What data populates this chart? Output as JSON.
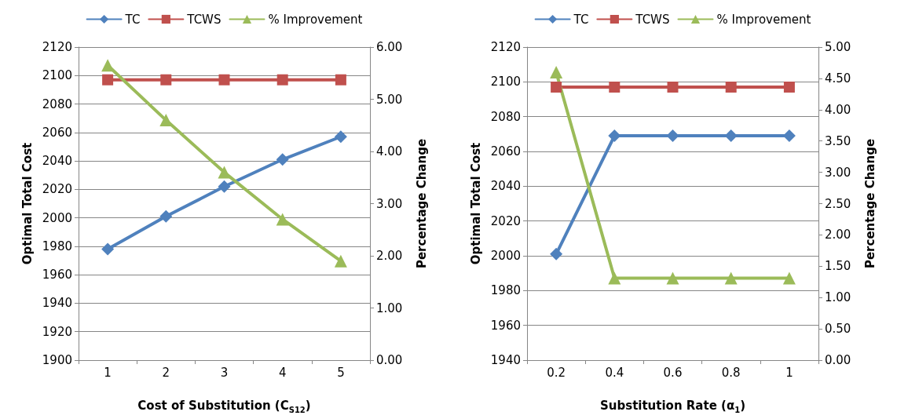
{
  "chart_data": [
    {
      "type": "line",
      "xlabel": "Cost of Substitution (C$_{S12}$)",
      "ylabel": "Optimal Total Cost",
      "y2label": "Percentage Change",
      "categories": [
        "1",
        "2",
        "3",
        "4",
        "5"
      ],
      "series": [
        {
          "name": "TC",
          "color": "#4f81bd",
          "marker": "diamond",
          "values": [
            1978,
            2001,
            2022,
            2041,
            2057
          ]
        },
        {
          "name": "TCWS",
          "color": "#c0504d",
          "marker": "square",
          "values": [
            2097,
            2097,
            2097,
            2097,
            2097
          ]
        },
        {
          "name": "% Improvement",
          "color": "#9bbb59",
          "marker": "triangle",
          "axis": "y2",
          "values": [
            5.65,
            4.6,
            3.6,
            2.7,
            1.9
          ]
        }
      ],
      "ylim": [
        1900,
        2120
      ],
      "yticks": [
        1900,
        1920,
        1940,
        1960,
        1980,
        2000,
        2020,
        2040,
        2060,
        2080,
        2100,
        2120
      ],
      "y2lim": [
        0,
        6
      ],
      "y2ticks": [
        {
          "value": 0,
          "label": "0.00"
        },
        {
          "value": 1,
          "label": "1.00"
        },
        {
          "value": 2,
          "label": "2.00"
        },
        {
          "value": 3,
          "label": "3.00"
        },
        {
          "value": 4,
          "label": "4.00"
        },
        {
          "value": 5,
          "label": "5.00"
        },
        {
          "value": 6,
          "label": "6.00"
        }
      ],
      "grid": "y",
      "legend": "top"
    },
    {
      "type": "line",
      "xlabel": "Substitution Rate (α$_{1}$)",
      "ylabel": "Optimal Total Cost",
      "y2label": "Percentage Change",
      "categories": [
        "0.2",
        "0.4",
        "0.6",
        "0.8",
        "1"
      ],
      "series": [
        {
          "name": "TC",
          "color": "#4f81bd",
          "marker": "diamond",
          "values": [
            2001,
            2069,
            2069,
            2069,
            2069
          ]
        },
        {
          "name": "TCWS",
          "color": "#c0504d",
          "marker": "square",
          "values": [
            2097,
            2097,
            2097,
            2097,
            2097
          ]
        },
        {
          "name": "% Improvement",
          "color": "#9bbb59",
          "marker": "triangle",
          "axis": "y2",
          "values": [
            4.6,
            1.31,
            1.31,
            1.31,
            1.31
          ]
        }
      ],
      "ylim": [
        1940,
        2120
      ],
      "yticks": [
        1940,
        1960,
        1980,
        2000,
        2020,
        2040,
        2060,
        2080,
        2100,
        2120
      ],
      "y2lim": [
        0,
        5
      ],
      "y2ticks": [
        {
          "value": 0,
          "label": "0.00"
        },
        {
          "value": 0.5,
          "label": "0.50"
        },
        {
          "value": 1,
          "label": "1.00"
        },
        {
          "value": 1.5,
          "label": "1.50"
        },
        {
          "value": 2,
          "label": "2.00"
        },
        {
          "value": 2.5,
          "label": "2.50"
        },
        {
          "value": 3,
          "label": "3.00"
        },
        {
          "value": 3.5,
          "label": "3.50"
        },
        {
          "value": 4,
          "label": "4.00"
        },
        {
          "value": 4.5,
          "label": "4.50"
        },
        {
          "value": 5,
          "label": "5.00"
        }
      ],
      "grid": "y",
      "legend": "top"
    }
  ]
}
